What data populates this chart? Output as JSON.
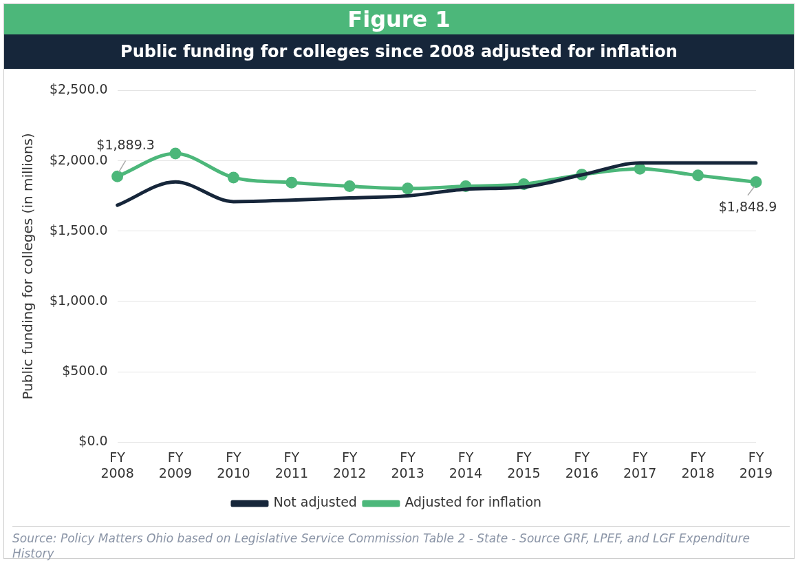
{
  "chart_data": {
    "type": "line",
    "title": "Figure 1",
    "subtitle": "Public funding for colleges since 2008 adjusted for inflation",
    "ylabel": "Public funding for colleges (in millions)",
    "categories": [
      [
        "FY",
        "2008"
      ],
      [
        "FY",
        "2009"
      ],
      [
        "FY",
        "2010"
      ],
      [
        "FY",
        "2011"
      ],
      [
        "FY",
        "2012"
      ],
      [
        "FY",
        "2013"
      ],
      [
        "FY",
        "2014"
      ],
      [
        "FY",
        "2015"
      ],
      [
        "FY",
        "2016"
      ],
      [
        "FY",
        "2017"
      ],
      [
        "FY",
        "2018"
      ],
      [
        "FY",
        "2019"
      ]
    ],
    "series": [
      {
        "name": "Not adjusted",
        "color": "#16263a",
        "marker": "none",
        "values": [
          1684,
          1850,
          1710,
          1720,
          1736,
          1751,
          1798,
          1813,
          1900,
          1984,
          1984,
          1984
        ]
      },
      {
        "name": "Adjusted for inflation",
        "color": "#4cb77a",
        "marker": "circle",
        "values": [
          1889.3,
          2052,
          1881,
          1845,
          1819,
          1803,
          1819,
          1834,
          1902,
          1943,
          1896,
          1848.9
        ],
        "value_labels": [
          "$1,889.3",
          null,
          null,
          null,
          null,
          null,
          null,
          null,
          null,
          null,
          null,
          "$1,848.9"
        ]
      }
    ],
    "ylim": [
      0,
      2500
    ],
    "yticks": [
      {
        "value": 0,
        "label": "$0.0"
      },
      {
        "value": 500,
        "label": "$500.0"
      },
      {
        "value": 1000,
        "label": "$1,000.0"
      },
      {
        "value": 1500,
        "label": "$1,500.0"
      },
      {
        "value": 2000,
        "label": "$2,000.0"
      },
      {
        "value": 2500,
        "label": "$2,500.0"
      }
    ],
    "grid": "y",
    "legend": "bottom",
    "annotations": [
      "Source: Policy Matters Ohio based on Legislative Service Commission Table 2 - State - Source GRF, LPEF, and LGF Expenditure History"
    ]
  }
}
